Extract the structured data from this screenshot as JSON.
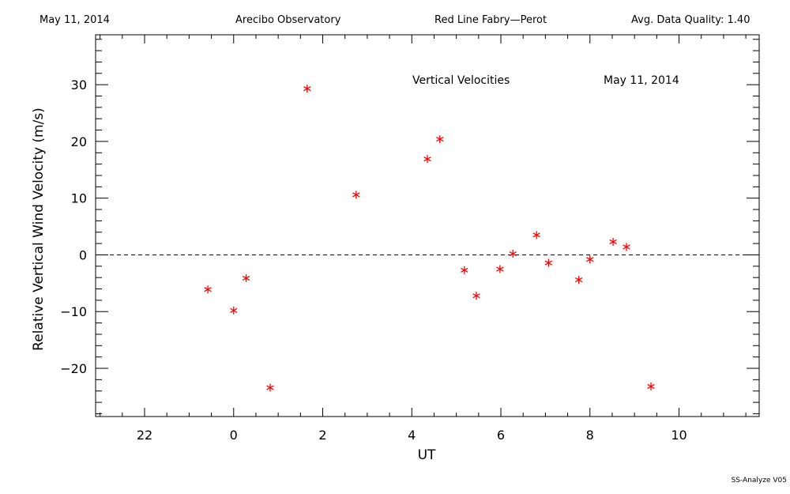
{
  "header": {
    "date": "May 11, 2014",
    "site": "Arecibo Observatory",
    "instrument": "Red Line Fabry—Perot",
    "quality": "Avg. Data Quality: 1.40"
  },
  "footer": {
    "version": "SS-Analyze V05"
  },
  "chart_data": {
    "type": "scatter",
    "title": "Vertical Velocities",
    "title_date": "May 11, 2014",
    "xlabel": "UT",
    "ylabel": "Relative Vertical Wind Velocity (m/s)",
    "xlim": [
      20.9,
      35.8
    ],
    "ylim": [
      -28.5,
      38.8
    ],
    "x_ticks": [
      22,
      24,
      26,
      28,
      30,
      32,
      34
    ],
    "x_tick_labels": [
      "22",
      "0",
      "2",
      "4",
      "6",
      "8",
      "10"
    ],
    "y_ticks": [
      -20,
      -10,
      0,
      10,
      20,
      30
    ],
    "y_tick_labels": [
      "−20",
      "−10",
      "0",
      "10",
      "20",
      "30"
    ],
    "reference_line": {
      "y": 0,
      "style": "dashed"
    },
    "marker": "asterisk",
    "marker_color": "#ff0000",
    "x_unit_note": "UT hours, continuous across midnight (24 = 0 UT)",
    "series": [
      {
        "x": [
          23.42,
          24.0,
          24.28,
          24.82,
          25.65,
          26.75,
          28.35,
          28.63,
          29.18,
          29.45,
          29.98,
          30.27,
          30.8,
          31.07,
          31.75,
          32.0,
          32.52,
          32.82,
          33.37
        ],
        "y": [
          -6.1,
          -9.8,
          -4.1,
          -23.4,
          29.3,
          10.6,
          16.9,
          20.4,
          -2.7,
          -7.2,
          -2.5,
          0.2,
          3.5,
          -1.4,
          -4.4,
          -0.8,
          2.3,
          1.4,
          -23.2
        ]
      }
    ]
  }
}
